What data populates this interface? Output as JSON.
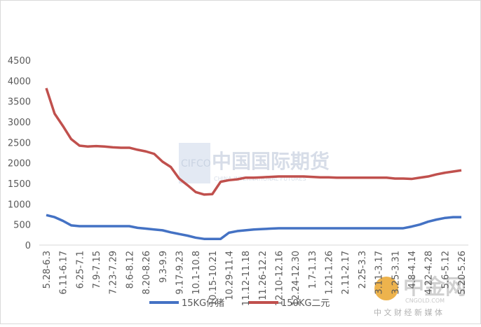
{
  "chart_data": {
    "type": "line",
    "categories": [
      "5.28-6.3",
      null,
      "6.11-6.17",
      null,
      "6.25-7.1",
      null,
      "7.9-7.15",
      null,
      "7.23-7.29",
      null,
      "8.6-8.12",
      null,
      "8.20-8.26",
      null,
      "9.3-9.9",
      null,
      "9.17-9.23",
      null,
      "10.1-10.8",
      null,
      "10.15-10.21",
      null,
      "10.29-11.4",
      null,
      "11.12-11.18",
      null,
      "11.26-12.2",
      null,
      "12.10-12.16",
      null,
      "12.24-12.30",
      null,
      "1.7-1.13",
      null,
      "1.21-1.26",
      null,
      "2.11-2.17",
      null,
      "2.25-3.3",
      null,
      "3.11-3.17",
      null,
      "3.25-3.31",
      null,
      "4.8-4.14",
      null,
      "4.22-4.28",
      null,
      "5.6-5.12",
      null,
      "5.20-5.26"
    ],
    "series": [
      {
        "name": "15KG仔猪",
        "color": "#4472c4",
        "values": [
          730,
          680,
          590,
          480,
          460,
          460,
          460,
          460,
          460,
          460,
          460,
          420,
          400,
          380,
          360,
          310,
          270,
          230,
          180,
          150,
          150,
          150,
          300,
          340,
          360,
          380,
          390,
          400,
          410,
          410,
          410,
          410,
          410,
          410,
          410,
          410,
          410,
          410,
          410,
          410,
          410,
          410,
          410,
          410,
          450,
          500,
          570,
          620,
          660,
          680,
          680
        ]
      },
      {
        "name": "150KG二元",
        "color": "#c0504d",
        "values": [
          3820,
          3200,
          2900,
          2580,
          2420,
          2400,
          2410,
          2400,
          2380,
          2370,
          2370,
          2320,
          2280,
          2220,
          2030,
          1900,
          1620,
          1460,
          1290,
          1230,
          1240,
          1540,
          1580,
          1600,
          1640,
          1640,
          1650,
          1660,
          1670,
          1670,
          1670,
          1670,
          1660,
          1650,
          1650,
          1640,
          1640,
          1640,
          1640,
          1640,
          1640,
          1640,
          1620,
          1620,
          1610,
          1640,
          1670,
          1720,
          1760,
          1790,
          1820
        ]
      }
    ],
    "ylim": [
      0,
      4500
    ],
    "yticks": [
      0,
      500,
      1000,
      1500,
      2000,
      2500,
      3000,
      3500,
      4000,
      4500
    ],
    "grid": false,
    "legend": "bottom",
    "watermarks": [
      "中国国际期货",
      "CIFCO",
      "CHINA INTERNATIONAL FUTURES",
      "中金网",
      "CNGOLD.COM",
      "中 文 财 经 新 媒 体"
    ]
  }
}
